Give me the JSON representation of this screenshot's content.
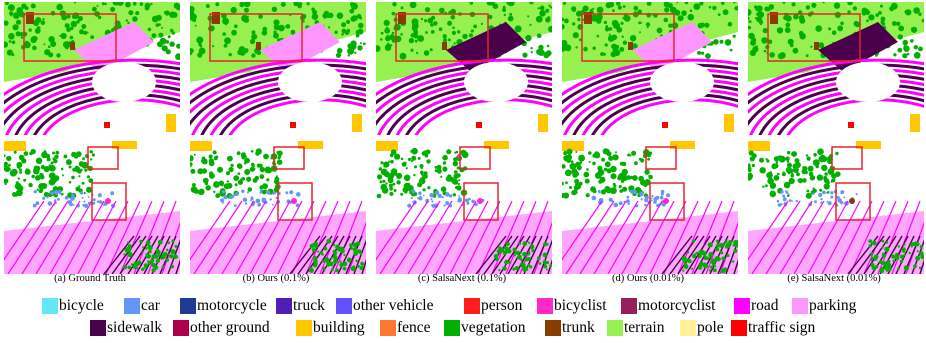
{
  "figure": {
    "columns": [
      {
        "caption": "(a) Ground Truth"
      },
      {
        "caption": "(b) Ours (0.1%)"
      },
      {
        "caption": "(c) SalsaNext (0.1%)"
      },
      {
        "caption": "(d) Ours (0.01%)"
      },
      {
        "caption": "(e) SalsaNext (0.01%)"
      }
    ],
    "highlight_color": "#e8232a"
  },
  "legend": {
    "rows": [
      [
        {
          "label": "bicycle",
          "color": "#64e6f5"
        },
        {
          "label": "car",
          "color": "#6496f5"
        },
        {
          "label": "motorcycle",
          "color": "#1e3c96"
        },
        {
          "label": "truck",
          "color": "#501eb4"
        },
        {
          "label": "other vehicle",
          "color": "#6450fa"
        },
        {
          "label": "person",
          "color": "#ff1e1e"
        },
        {
          "label": "bicyclist",
          "color": "#ff28c8"
        },
        {
          "label": "motorcyclist",
          "color": "#961e5a"
        },
        {
          "label": "road",
          "color": "#ff00ff"
        },
        {
          "label": "parking",
          "color": "#ff96ff"
        }
      ],
      [
        {
          "label": "sidewalk",
          "color": "#4b004b"
        },
        {
          "label": "other ground",
          "color": "#af004b"
        },
        {
          "label": "building",
          "color": "#ffc800"
        },
        {
          "label": "fence",
          "color": "#ff7832"
        },
        {
          "label": "vegetation",
          "color": "#00af00"
        },
        {
          "label": "trunk",
          "color": "#873c00"
        },
        {
          "label": "terrain",
          "color": "#96f050"
        },
        {
          "label": "pole",
          "color": "#fff096"
        },
        {
          "label": "traffic sign",
          "color": "#ff0000"
        }
      ]
    ]
  }
}
